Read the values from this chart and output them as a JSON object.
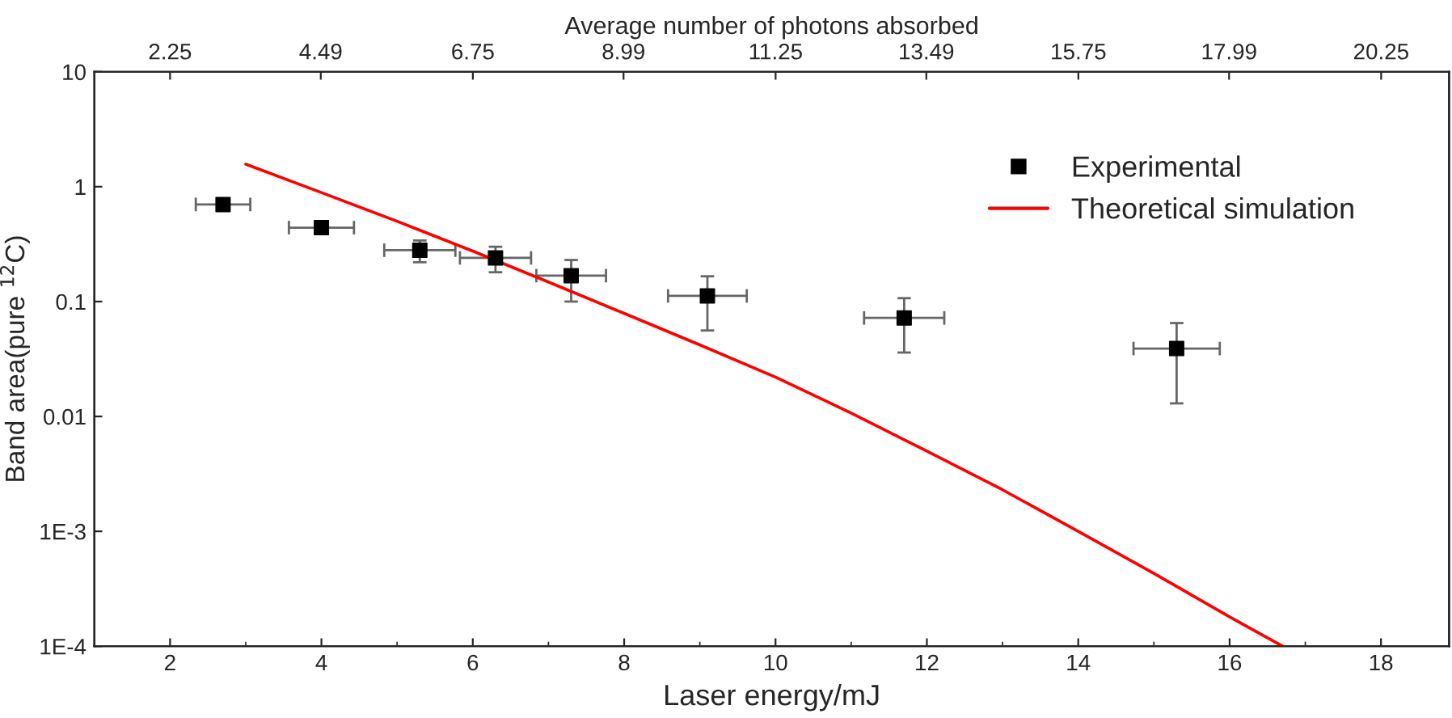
{
  "chart_data": {
    "type": "scatter",
    "xlabel": "Laser energy/mJ",
    "ylabel": "Band area(pure $^{12}$C)",
    "x2label": "Average number of photons absorbed",
    "xlim": [
      1,
      18.9
    ],
    "xticks": [
      2,
      4,
      6,
      8,
      10,
      12,
      14,
      16,
      18
    ],
    "x2lim": [
      1.125,
      21.26
    ],
    "x2ticks": [
      2.25,
      4.49,
      6.75,
      8.99,
      11.25,
      13.49,
      15.75,
      17.99,
      20.25
    ],
    "ylim": [
      0.0001,
      10
    ],
    "yticks": [
      {
        "value": 0.0001,
        "label": "1E-4"
      },
      {
        "value": 0.001,
        "label": "1E-3"
      },
      0.01,
      0.1,
      1,
      10
    ],
    "log": "y",
    "grid": false,
    "legend": "top right",
    "series": [
      {
        "name": "Experimental",
        "color": "#000000",
        "marker": "square",
        "x": [
          2.7,
          4.0,
          5.3,
          6.3,
          7.3,
          9.1,
          11.7,
          15.3
        ],
        "values": [
          0.7,
          0.44,
          0.28,
          0.24,
          0.168,
          0.112,
          0.072,
          0.039
        ],
        "errors": [
          null,
          [
            0.39,
            0.49
          ],
          [
            0.22,
            0.34
          ],
          [
            0.18,
            0.3
          ],
          [
            0.1,
            0.23
          ],
          [
            0.056,
            0.166
          ],
          [
            0.036,
            0.107
          ],
          [
            0.013,
            0.065
          ]
        ],
        "xerrors": [
          0.36,
          0.43,
          0.47,
          0.47,
          0.46,
          0.52,
          0.53,
          0.57
        ]
      },
      {
        "name": "Theoretical simulation",
        "type": "line",
        "color": "#ff0000",
        "marker": "none",
        "line_style": "solid",
        "x": [
          3,
          4,
          5,
          6,
          7,
          8,
          9,
          10,
          11,
          12,
          13,
          14,
          15,
          16,
          16.7
        ],
        "values": [
          1.57,
          0.89,
          0.5,
          0.275,
          0.148,
          0.079,
          0.042,
          0.022,
          0.0107,
          0.005,
          0.0023,
          0.001,
          0.00043,
          0.00018,
          0.0001
        ]
      }
    ]
  }
}
